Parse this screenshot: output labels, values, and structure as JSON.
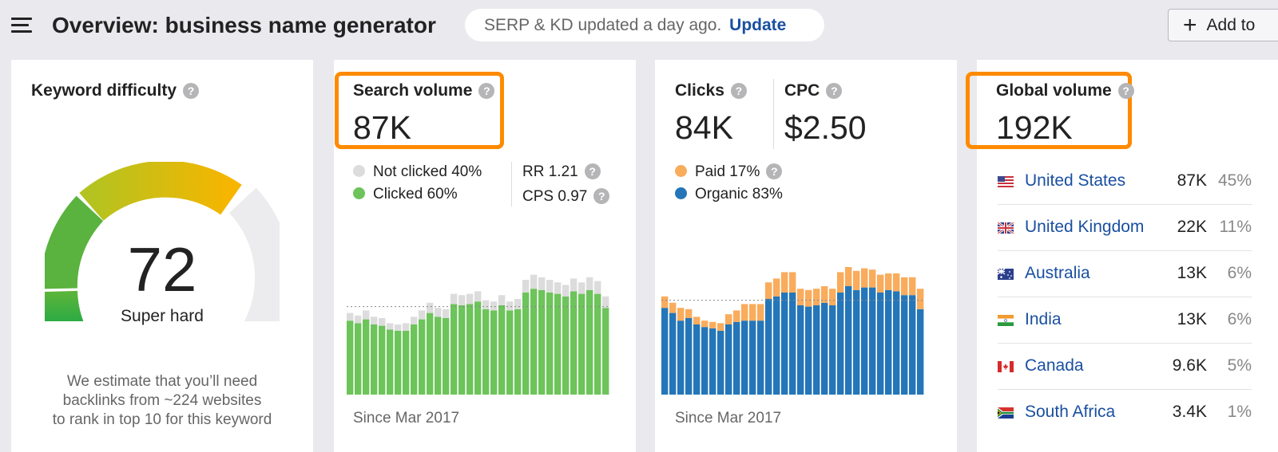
{
  "header": {
    "title": "Overview: business name generator",
    "serp_notice": "SERP & KD updated a day ago.",
    "update_label": "Update",
    "add_label": "Add to"
  },
  "kd": {
    "label": "Keyword difficulty",
    "value": "72",
    "level": "Super hard",
    "estimate": [
      "We estimate that you’ll need",
      "backlinks from ~224 websites",
      "to rank in top 10 for this keyword"
    ]
  },
  "search_volume": {
    "label": "Search volume",
    "value": "87K",
    "not_clicked": "Not clicked 40%",
    "clicked": "Clicked 60%",
    "rr": "RR 1.21",
    "cps": "CPS 0.97",
    "since": "Since Mar 2017",
    "colors": {
      "clicked": "#6cc45a",
      "not_clicked": "#dcdcdc"
    }
  },
  "clicks": {
    "label": "Clicks",
    "value": "84K",
    "cpc_label": "CPC",
    "cpc_value": "$2.50",
    "paid": "Paid 17%",
    "organic": "Organic 83%",
    "since": "Since Mar 2017",
    "colors": {
      "paid": "#f9ac5c",
      "organic": "#2576b8"
    }
  },
  "global_volume": {
    "label": "Global volume",
    "value": "192K",
    "countries": [
      {
        "name": "United States",
        "volume": "87K",
        "pct": "45%",
        "flag": "us-flag-icon"
      },
      {
        "name": "United Kingdom",
        "volume": "22K",
        "pct": "11%",
        "flag": "uk-flag-icon"
      },
      {
        "name": "Australia",
        "volume": "13K",
        "pct": "6%",
        "flag": "au-flag-icon"
      },
      {
        "name": "India",
        "volume": "13K",
        "pct": "6%",
        "flag": "in-flag-icon"
      },
      {
        "name": "Canada",
        "volume": "9.6K",
        "pct": "5%",
        "flag": "ca-flag-icon"
      },
      {
        "name": "South Africa",
        "volume": "3.4K",
        "pct": "1%",
        "flag": "za-flag-icon"
      }
    ]
  },
  "chart_data": [
    {
      "type": "bar",
      "title": "Search volume",
      "stacked": true,
      "series": [
        {
          "name": "Clicked",
          "values": [
            58,
            56,
            59,
            55,
            54,
            51,
            50,
            50,
            55,
            59,
            64,
            61,
            60,
            71,
            70,
            71,
            73,
            67,
            66,
            70,
            66,
            67,
            80,
            83,
            82,
            80,
            79,
            77,
            81,
            79,
            82,
            79,
            68
          ]
        },
        {
          "name": "Not clicked",
          "values": [
            6,
            6,
            7,
            6,
            6,
            5,
            5,
            6,
            6,
            7,
            8,
            7,
            7,
            8,
            8,
            8,
            8,
            7,
            7,
            8,
            7,
            8,
            10,
            11,
            10,
            10,
            9,
            9,
            10,
            9,
            10,
            10,
            9
          ]
        }
      ]
    },
    {
      "type": "bar",
      "title": "Clicks",
      "stacked": true,
      "series": [
        {
          "name": "Organic",
          "values": [
            68,
            64,
            58,
            60,
            55,
            53,
            52,
            50,
            55,
            57,
            58,
            58,
            58,
            75,
            77,
            80,
            80,
            70,
            69,
            70,
            72,
            70,
            80,
            85,
            82,
            84,
            84,
            80,
            82,
            81,
            78,
            78,
            67
          ]
        },
        {
          "name": "Paid",
          "values": [
            9,
            8,
            10,
            7,
            6,
            5,
            5,
            6,
            8,
            9,
            13,
            13,
            13,
            13,
            14,
            16,
            16,
            13,
            13,
            13,
            13,
            13,
            16,
            15,
            15,
            15,
            14,
            14,
            13,
            14,
            14,
            14,
            16
          ]
        }
      ]
    }
  ]
}
